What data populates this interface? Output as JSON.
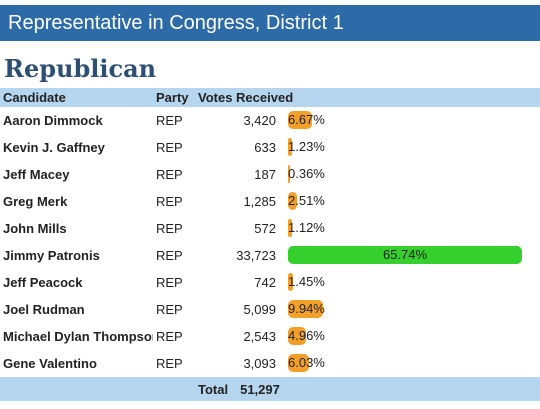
{
  "header": {
    "title": "Representative in Congress, District 1"
  },
  "party": {
    "title": "Republican"
  },
  "table": {
    "columns": {
      "candidate": "Candidate",
      "party": "Party",
      "votes": "Votes Received",
      "pct": ""
    },
    "rows": [
      {
        "name": "Aaron Dimmock",
        "party": "REP",
        "votes": "3,420",
        "pct_label": "6.67%",
        "pct": 6.67
      },
      {
        "name": "Kevin J. Gaffney",
        "party": "REP",
        "votes": "633",
        "pct_label": "1.23%",
        "pct": 1.23
      },
      {
        "name": "Jeff Macey",
        "party": "REP",
        "votes": "187",
        "pct_label": "0.36%",
        "pct": 0.36
      },
      {
        "name": "Greg Merk",
        "party": "REP",
        "votes": "1,285",
        "pct_label": "2.51%",
        "pct": 2.51
      },
      {
        "name": "John Mills",
        "party": "REP",
        "votes": "572",
        "pct_label": "1.12%",
        "pct": 1.12
      },
      {
        "name": "Jimmy Patronis",
        "party": "REP",
        "votes": "33,723",
        "pct_label": "65.74%",
        "pct": 65.74,
        "winner": true
      },
      {
        "name": "Jeff Peacock",
        "party": "REP",
        "votes": "742",
        "pct_label": "1.45%",
        "pct": 1.45
      },
      {
        "name": "Joel Rudman",
        "party": "REP",
        "votes": "5,099",
        "pct_label": "9.94%",
        "pct": 9.94
      },
      {
        "name": "Michael Dylan Thompson",
        "party": "REP",
        "votes": "2,543",
        "pct_label": "4.96%",
        "pct": 4.96
      },
      {
        "name": "Gene Valentino",
        "party": "REP",
        "votes": "3,093",
        "pct_label": "6.03%",
        "pct": 6.03
      }
    ],
    "total": {
      "label": "Total",
      "votes": "51,297"
    }
  },
  "colors": {
    "header_bg": "#2c6ba7",
    "party_title": "#2e4f74",
    "table_header_bg": "#b6d5ee",
    "bar": "#f3a02a",
    "winner_bar": "#35d02e"
  }
}
